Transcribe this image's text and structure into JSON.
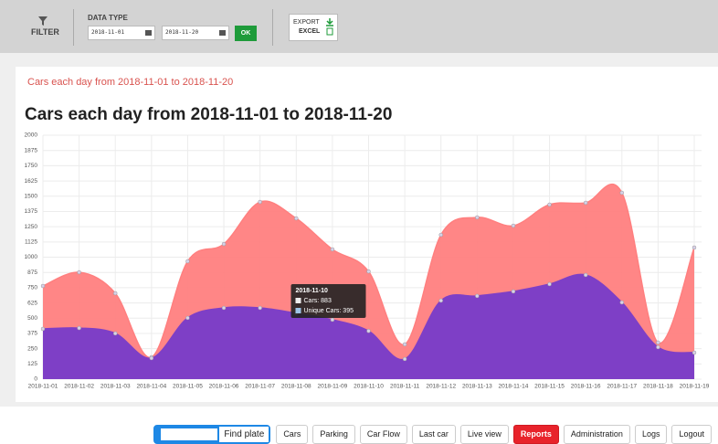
{
  "toolbar": {
    "filter": "FILTER",
    "data_type": "DATA TYPE",
    "date_from": "2018-11-01",
    "date_to": "2018-11-20",
    "ok": "OK",
    "export": "EXPORT",
    "excel": "EXCEL"
  },
  "subtitle": "Cars each day from 2018-11-01 to 2018-11-20",
  "chart_data": {
    "type": "area",
    "title": "Cars each day from 2018-11-01 to 2018-11-20",
    "categories": [
      "2018-11-01",
      "2018-11-02",
      "2018-11-03",
      "2018-11-04",
      "2018-11-05",
      "2018-11-06",
      "2018-11-07",
      "2018-11-08",
      "2018-11-09",
      "2018-11-10",
      "2018-11-11",
      "2018-11-12",
      "2018-11-13",
      "2018-11-14",
      "2018-11-15",
      "2018-11-16",
      "2018-11-17",
      "2018-11-18",
      "2018-11-19"
    ],
    "series": [
      {
        "name": "Cars",
        "color": "#ff7f7f",
        "values": [
          764,
          876,
          704,
          180,
          966,
          1108,
          1453,
          1318,
          1064,
          883,
          285,
          1183,
          1326,
          1258,
          1431,
          1446,
          1528,
          300,
          1079
        ]
      },
      {
        "name": "Unique Cars",
        "color": "#7e3fc6",
        "values": [
          412,
          419,
          375,
          172,
          502,
          584,
          584,
          540,
          487,
          395,
          165,
          644,
          682,
          719,
          779,
          854,
          629,
          262,
          217
        ]
      }
    ],
    "ylim": [
      0,
      2000
    ],
    "yticks": [
      0,
      125,
      250,
      375,
      500,
      625,
      750,
      875,
      1000,
      1125,
      1250,
      1375,
      1500,
      1625,
      1750,
      1875,
      2000
    ],
    "grid": true,
    "tooltip": {
      "title": "2018-11-10",
      "rows": [
        "Cars: 883",
        "Unique Cars: 395"
      ]
    }
  },
  "nav": {
    "find_plate": "Find plate",
    "buttons": [
      "Cars",
      "Parking",
      "Car Flow",
      "Last car",
      "Live view",
      "Reports",
      "Administration",
      "Logs",
      "Logout"
    ],
    "active": "Reports"
  }
}
